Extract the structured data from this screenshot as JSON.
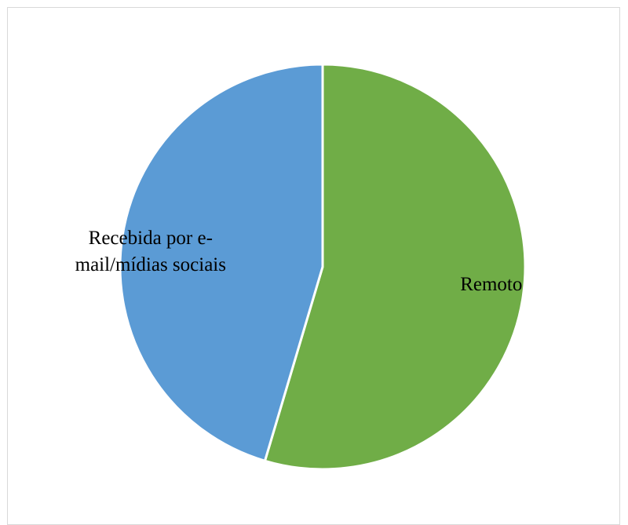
{
  "chart_data": {
    "type": "pie",
    "title": "",
    "categories": [
      "Remoto",
      "Recebida por e-mail/mídias sociais"
    ],
    "label_lines": [
      [
        "Remoto"
      ],
      [
        "Recebida por e-",
        "mail/mídias sociais"
      ]
    ],
    "values": [
      54.6,
      45.4
    ],
    "colors": [
      "#70ad47",
      "#5b9bd5"
    ],
    "start_angle_deg": 0,
    "direction": "clockwise",
    "legend": "none",
    "data_labels": "category-name"
  }
}
